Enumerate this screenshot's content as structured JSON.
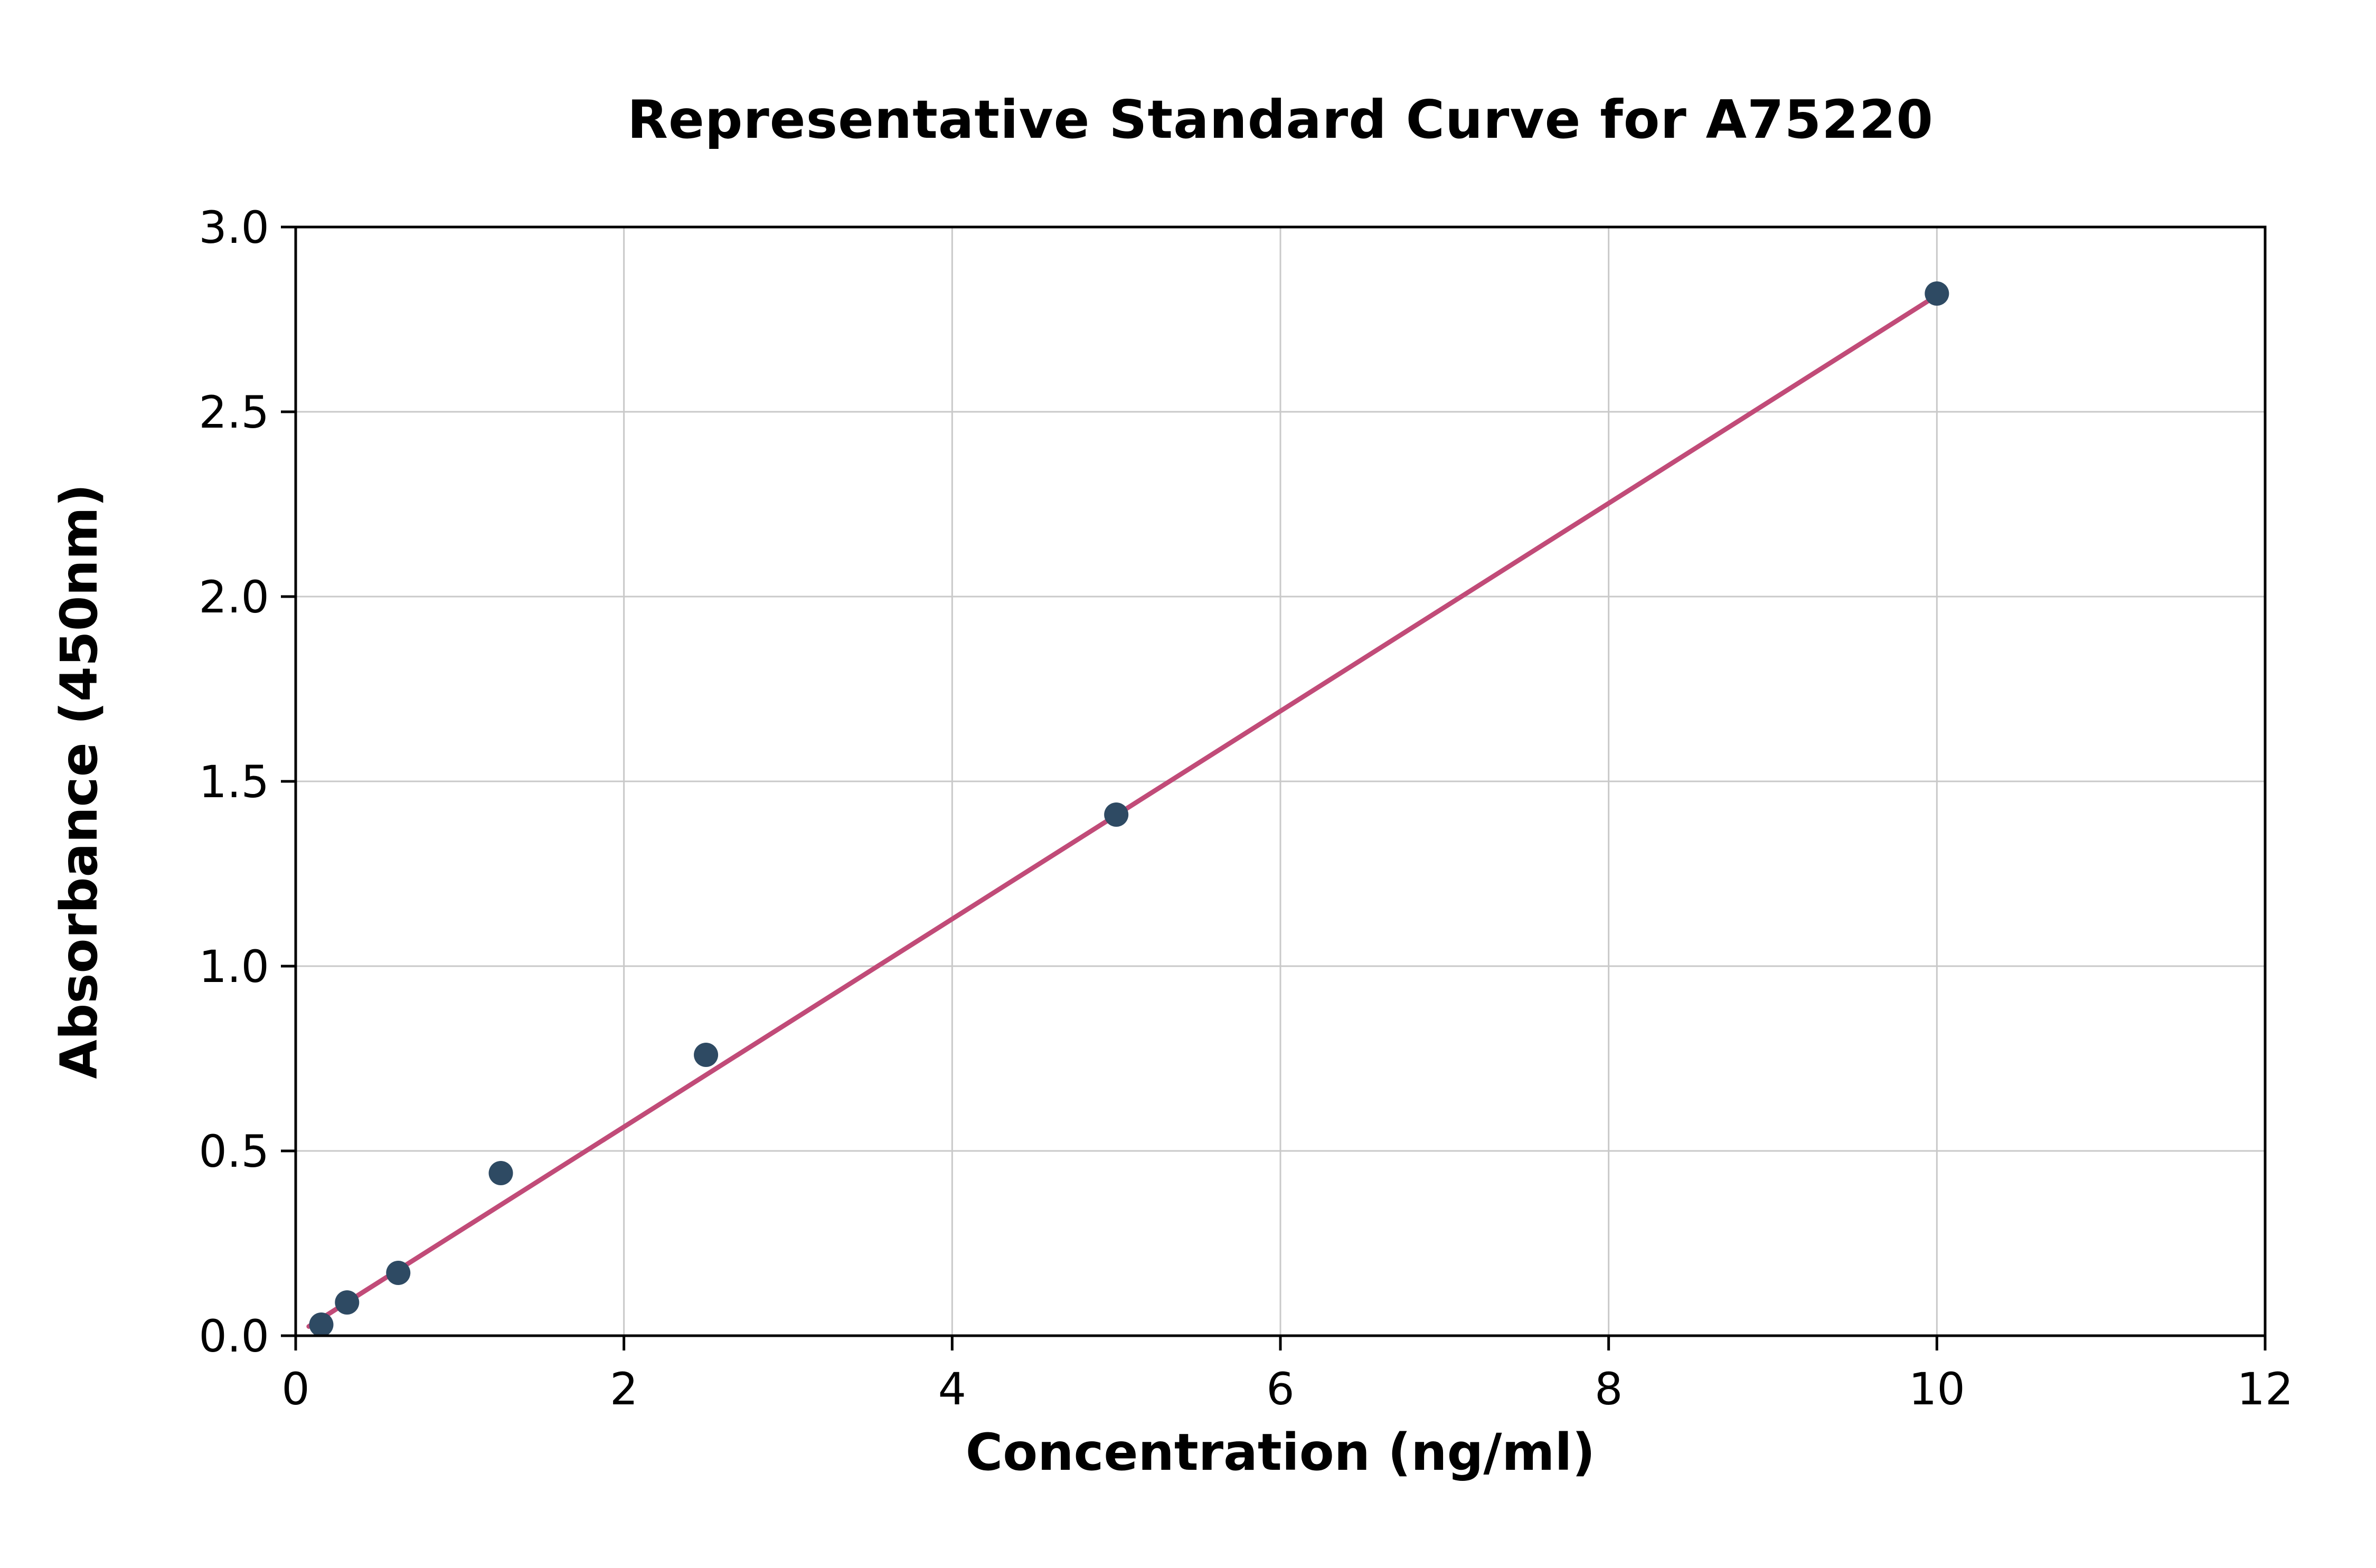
{
  "chart_data": {
    "type": "scatter",
    "title": "Representative Standard Curve for A75220",
    "xlabel": "Concentration (ng/ml)",
    "ylabel": "Absorbance (450nm)",
    "xlim": [
      0,
      12
    ],
    "ylim": [
      0,
      3
    ],
    "xticks": [
      0,
      2,
      4,
      6,
      8,
      10,
      12
    ],
    "xtick_labels": [
      "0",
      "2",
      "4",
      "6",
      "8",
      "10",
      "12"
    ],
    "yticks": [
      0,
      0.5,
      1,
      1.5,
      2,
      2.5,
      3
    ],
    "ytick_labels": [
      "0.0",
      "0.5",
      "1.0",
      "1.5",
      "2.0",
      "2.5",
      "3.0"
    ],
    "grid": true,
    "legend": "none",
    "series": [
      {
        "name": "standard-points",
        "type": "scatter",
        "x": [
          0.156,
          0.313,
          0.625,
          1.25,
          2.5,
          5,
          10
        ],
        "y": [
          0.03,
          0.09,
          0.17,
          0.44,
          0.76,
          1.41,
          2.82
        ]
      },
      {
        "name": "linear-fit",
        "type": "line",
        "x": [
          0.08,
          10
        ],
        "y": [
          0.025,
          2.815
        ]
      }
    ],
    "colors": {
      "point": "#2e4a63",
      "line": "#c14b78",
      "grid": "#c9c9c9",
      "axis": "#000000",
      "background": "#ffffff"
    }
  }
}
